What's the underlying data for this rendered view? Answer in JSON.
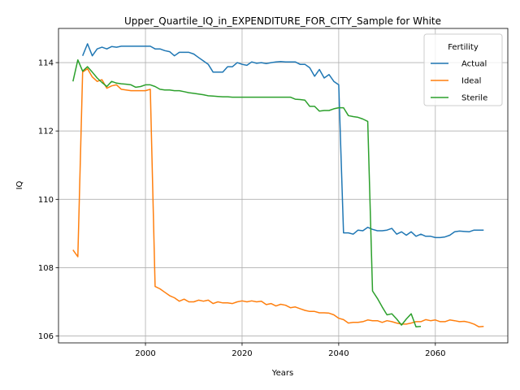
{
  "chart_data": {
    "type": "line",
    "title": "Upper_Quartile_IQ_in_EXPENDITURE_FOR_CITY_Sample for White",
    "xlabel": "Years",
    "ylabel": "IQ",
    "xlim": [
      1982,
      2075
    ],
    "ylim": [
      105.8,
      115.0
    ],
    "xticks": [
      2000,
      2020,
      2040,
      2060
    ],
    "yticks": [
      106,
      108,
      110,
      112,
      114
    ],
    "grid": true,
    "legend": {
      "title": "Fertility",
      "position": "top-right"
    },
    "series": [
      {
        "name": "Actual",
        "color": "#1f77b4",
        "points": [
          [
            1987,
            114.2
          ],
          [
            1988,
            114.55
          ],
          [
            1989,
            114.2
          ],
          [
            1990,
            114.4
          ],
          [
            1991,
            114.45
          ],
          [
            1992,
            114.4
          ],
          [
            1993,
            114.47
          ],
          [
            1994,
            114.45
          ],
          [
            1995,
            114.48
          ],
          [
            1996,
            114.48
          ],
          [
            1997,
            114.48
          ],
          [
            1998,
            114.48
          ],
          [
            1999,
            114.48
          ],
          [
            2000,
            114.48
          ],
          [
            2001,
            114.48
          ],
          [
            2002,
            114.4
          ],
          [
            2003,
            114.4
          ],
          [
            2004,
            114.35
          ],
          [
            2005,
            114.32
          ],
          [
            2006,
            114.2
          ],
          [
            2007,
            114.3
          ],
          [
            2008,
            114.3
          ],
          [
            2009,
            114.3
          ],
          [
            2010,
            114.25
          ],
          [
            2011,
            114.15
          ],
          [
            2012,
            114.05
          ],
          [
            2013,
            113.95
          ],
          [
            2014,
            113.72
          ],
          [
            2015,
            113.72
          ],
          [
            2016,
            113.72
          ],
          [
            2017,
            113.88
          ],
          [
            2018,
            113.88
          ],
          [
            2019,
            114.0
          ],
          [
            2020,
            113.95
          ],
          [
            2021,
            113.92
          ],
          [
            2022,
            114.02
          ],
          [
            2023,
            113.98
          ],
          [
            2024,
            114.0
          ],
          [
            2025,
            113.97
          ],
          [
            2026,
            114.0
          ],
          [
            2027,
            114.02
          ],
          [
            2028,
            114.03
          ],
          [
            2029,
            114.02
          ],
          [
            2030,
            114.02
          ],
          [
            2031,
            114.02
          ],
          [
            2032,
            113.95
          ],
          [
            2033,
            113.95
          ],
          [
            2034,
            113.85
          ],
          [
            2035,
            113.6
          ],
          [
            2036,
            113.8
          ],
          [
            2037,
            113.55
          ],
          [
            2038,
            113.65
          ],
          [
            2039,
            113.45
          ],
          [
            2040,
            113.35
          ],
          [
            2041,
            109.02
          ],
          [
            2042,
            109.02
          ],
          [
            2043,
            108.98
          ],
          [
            2044,
            109.1
          ],
          [
            2045,
            109.08
          ],
          [
            2046,
            109.18
          ],
          [
            2047,
            109.12
          ],
          [
            2048,
            109.08
          ],
          [
            2049,
            109.08
          ],
          [
            2050,
            109.1
          ],
          [
            2051,
            109.15
          ],
          [
            2052,
            108.98
          ],
          [
            2053,
            109.05
          ],
          [
            2054,
            108.95
          ],
          [
            2055,
            109.05
          ],
          [
            2056,
            108.92
          ],
          [
            2057,
            108.98
          ],
          [
            2058,
            108.92
          ],
          [
            2059,
            108.92
          ],
          [
            2060,
            108.88
          ],
          [
            2061,
            108.88
          ],
          [
            2062,
            108.9
          ],
          [
            2063,
            108.95
          ],
          [
            2064,
            109.05
          ],
          [
            2065,
            109.07
          ],
          [
            2066,
            109.06
          ],
          [
            2067,
            109.05
          ],
          [
            2068,
            109.1
          ],
          [
            2069,
            109.1
          ],
          [
            2070,
            109.1
          ]
        ]
      },
      {
        "name": "Ideal",
        "color": "#ff7f0e",
        "points": [
          [
            1985,
            108.52
          ],
          [
            1986,
            108.32
          ],
          [
            1987,
            113.72
          ],
          [
            1988,
            113.82
          ],
          [
            1989,
            113.58
          ],
          [
            1990,
            113.45
          ],
          [
            1991,
            113.5
          ],
          [
            1992,
            113.25
          ],
          [
            1993,
            113.32
          ],
          [
            1994,
            113.35
          ],
          [
            1995,
            113.22
          ],
          [
            1996,
            113.2
          ],
          [
            1997,
            113.18
          ],
          [
            1998,
            113.18
          ],
          [
            1999,
            113.18
          ],
          [
            2000,
            113.18
          ],
          [
            2001,
            113.22
          ],
          [
            2002,
            107.45
          ],
          [
            2003,
            107.38
          ],
          [
            2004,
            107.28
          ],
          [
            2005,
            107.18
          ],
          [
            2006,
            107.12
          ],
          [
            2007,
            107.02
          ],
          [
            2008,
            107.08
          ],
          [
            2009,
            107.0
          ],
          [
            2010,
            107.0
          ],
          [
            2011,
            107.05
          ],
          [
            2012,
            107.02
          ],
          [
            2013,
            107.05
          ],
          [
            2014,
            106.95
          ],
          [
            2015,
            107.0
          ],
          [
            2016,
            106.97
          ],
          [
            2017,
            106.97
          ],
          [
            2018,
            106.95
          ],
          [
            2019,
            107.0
          ],
          [
            2020,
            107.03
          ],
          [
            2021,
            107.0
          ],
          [
            2022,
            107.03
          ],
          [
            2023,
            107.0
          ],
          [
            2024,
            107.02
          ],
          [
            2025,
            106.92
          ],
          [
            2026,
            106.95
          ],
          [
            2027,
            106.88
          ],
          [
            2028,
            106.93
          ],
          [
            2029,
            106.9
          ],
          [
            2030,
            106.83
          ],
          [
            2031,
            106.85
          ],
          [
            2032,
            106.8
          ],
          [
            2033,
            106.75
          ],
          [
            2034,
            106.72
          ],
          [
            2035,
            106.72
          ],
          [
            2036,
            106.68
          ],
          [
            2037,
            106.68
          ],
          [
            2038,
            106.67
          ],
          [
            2039,
            106.62
          ],
          [
            2040,
            106.52
          ],
          [
            2041,
            106.48
          ],
          [
            2042,
            106.38
          ],
          [
            2043,
            106.4
          ],
          [
            2044,
            106.4
          ],
          [
            2045,
            106.42
          ],
          [
            2046,
            106.47
          ],
          [
            2047,
            106.45
          ],
          [
            2048,
            106.45
          ],
          [
            2049,
            106.4
          ],
          [
            2050,
            106.45
          ],
          [
            2051,
            106.42
          ],
          [
            2052,
            106.38
          ],
          [
            2053,
            106.35
          ],
          [
            2054,
            106.35
          ],
          [
            2055,
            106.38
          ],
          [
            2056,
            106.42
          ],
          [
            2057,
            106.42
          ],
          [
            2058,
            106.48
          ],
          [
            2059,
            106.45
          ],
          [
            2060,
            106.47
          ],
          [
            2061,
            106.42
          ],
          [
            2062,
            106.42
          ],
          [
            2063,
            106.47
          ],
          [
            2064,
            106.45
          ],
          [
            2065,
            106.42
          ],
          [
            2066,
            106.43
          ],
          [
            2067,
            106.4
          ],
          [
            2068,
            106.35
          ],
          [
            2069,
            106.27
          ],
          [
            2070,
            106.28
          ]
        ]
      },
      {
        "name": "Sterile",
        "color": "#2ca02c",
        "points": [
          [
            1985,
            113.45
          ],
          [
            1986,
            114.08
          ],
          [
            1987,
            113.75
          ],
          [
            1988,
            113.88
          ],
          [
            1989,
            113.72
          ],
          [
            1990,
            113.55
          ],
          [
            1991,
            113.42
          ],
          [
            1992,
            113.3
          ],
          [
            1993,
            113.45
          ],
          [
            1994,
            113.4
          ],
          [
            1995,
            113.38
          ],
          [
            1996,
            113.37
          ],
          [
            1997,
            113.35
          ],
          [
            1998,
            113.28
          ],
          [
            1999,
            113.3
          ],
          [
            2000,
            113.35
          ],
          [
            2001,
            113.35
          ],
          [
            2002,
            113.3
          ],
          [
            2003,
            113.22
          ],
          [
            2004,
            113.2
          ],
          [
            2005,
            113.2
          ],
          [
            2006,
            113.18
          ],
          [
            2007,
            113.18
          ],
          [
            2008,
            113.15
          ],
          [
            2009,
            113.12
          ],
          [
            2010,
            113.1
          ],
          [
            2011,
            113.08
          ],
          [
            2012,
            113.06
          ],
          [
            2013,
            113.03
          ],
          [
            2014,
            113.02
          ],
          [
            2015,
            113.01
          ],
          [
            2016,
            113.0
          ],
          [
            2017,
            113.0
          ],
          [
            2018,
            112.99
          ],
          [
            2019,
            112.99
          ],
          [
            2020,
            112.99
          ],
          [
            2021,
            112.99
          ],
          [
            2022,
            112.99
          ],
          [
            2023,
            112.99
          ],
          [
            2024,
            112.99
          ],
          [
            2025,
            112.99
          ],
          [
            2026,
            112.99
          ],
          [
            2027,
            112.99
          ],
          [
            2028,
            112.99
          ],
          [
            2029,
            112.99
          ],
          [
            2030,
            112.99
          ],
          [
            2031,
            112.93
          ],
          [
            2032,
            112.92
          ],
          [
            2033,
            112.9
          ],
          [
            2034,
            112.72
          ],
          [
            2035,
            112.72
          ],
          [
            2036,
            112.58
          ],
          [
            2037,
            112.6
          ],
          [
            2038,
            112.6
          ],
          [
            2039,
            112.65
          ],
          [
            2040,
            112.68
          ],
          [
            2041,
            112.68
          ],
          [
            2042,
            112.45
          ],
          [
            2043,
            112.42
          ],
          [
            2044,
            112.4
          ],
          [
            2045,
            112.35
          ],
          [
            2046,
            112.28
          ],
          [
            2047,
            107.32
          ],
          [
            2048,
            107.1
          ],
          [
            2049,
            106.85
          ],
          [
            2050,
            106.62
          ],
          [
            2051,
            106.65
          ],
          [
            2052,
            106.5
          ],
          [
            2053,
            106.32
          ],
          [
            2054,
            106.5
          ],
          [
            2055,
            106.65
          ],
          [
            2056,
            106.27
          ],
          [
            2057,
            106.28
          ]
        ]
      }
    ]
  }
}
